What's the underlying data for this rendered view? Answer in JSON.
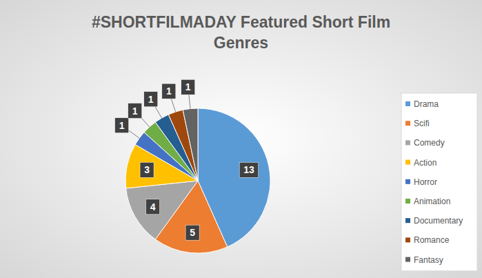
{
  "chart_data": {
    "type": "pie",
    "title": "#SHORTFILMADAY Featured Short Film Genres",
    "categories": [
      "Drama",
      "Scifi",
      "Comedy",
      "Action",
      "Horror",
      "Animation",
      "Documentary",
      "Romance",
      "Fantasy"
    ],
    "values": [
      13,
      5,
      4,
      3,
      1,
      1,
      1,
      1,
      1
    ],
    "colors": [
      "#5b9bd5",
      "#ed7d31",
      "#a5a5a5",
      "#ffc000",
      "#4472c4",
      "#70ad47",
      "#255e91",
      "#9e480e",
      "#636363"
    ],
    "legend": "right",
    "data_labels": true
  }
}
